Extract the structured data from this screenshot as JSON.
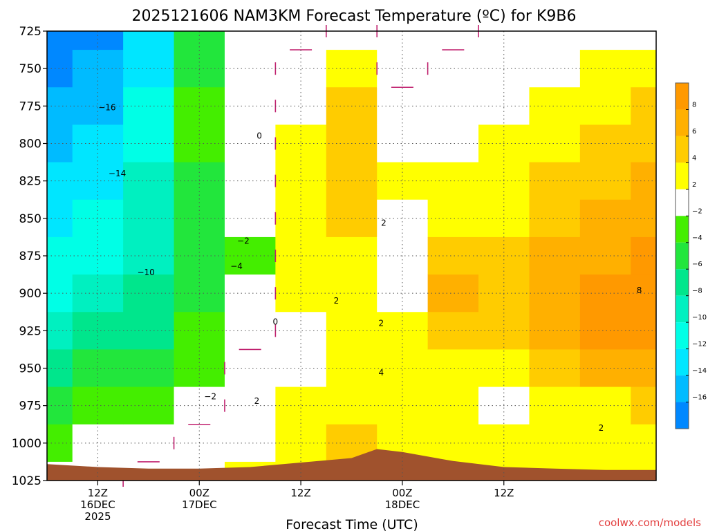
{
  "chart_data": {
    "type": "heatmap",
    "title": "2025121606 NAM3KM Forecast Temperature (ºC) for K9B6",
    "xlabel": "Forecast Time (UTC)",
    "ylabel": "",
    "credit": "coolwx.com/models",
    "y_axis": {
      "scale": "pressure (hPa), inverted",
      "range": [
        1025,
        725
      ],
      "ticks": [
        725,
        750,
        775,
        800,
        825,
        850,
        875,
        900,
        925,
        950,
        975,
        1000,
        1025
      ],
      "tick_labels": [
        "725",
        "750",
        "775",
        "800",
        "825",
        "850",
        "875",
        "900",
        "925",
        "950",
        "975",
        "1000",
        "1025"
      ]
    },
    "x_axis": {
      "range_hours": [
        6,
        78
      ],
      "ticks": [
        {
          "hour": 12,
          "lines": [
            "12Z",
            "16DEC",
            "2025"
          ]
        },
        {
          "hour": 24,
          "lines": [
            "00Z",
            "17DEC"
          ]
        },
        {
          "hour": 36,
          "lines": [
            "12Z"
          ]
        },
        {
          "hour": 48,
          "lines": [
            "00Z",
            "18DEC"
          ]
        },
        {
          "hour": 60,
          "lines": [
            "12Z"
          ]
        }
      ]
    },
    "grid": true,
    "legend": "right (colorbar)",
    "colorbar": {
      "bins": [
        {
          "from": 8,
          "to": 10,
          "color": "#ff9900"
        },
        {
          "from": 6,
          "to": 8,
          "color": "#ffb000"
        },
        {
          "from": 4,
          "to": 6,
          "color": "#ffcc00"
        },
        {
          "from": 2,
          "to": 4,
          "color": "#ffff00"
        },
        {
          "from": -2,
          "to": 2,
          "color": "#ffffff"
        },
        {
          "from": -4,
          "to": -2,
          "color": "#44ee00"
        },
        {
          "from": -6,
          "to": -4,
          "color": "#22e63c"
        },
        {
          "from": -8,
          "to": -6,
          "color": "#00e68c"
        },
        {
          "from": -10,
          "to": -8,
          "color": "#00f0c0"
        },
        {
          "from": -12,
          "to": -10,
          "color": "#00ffe6"
        },
        {
          "from": -14,
          "to": -12,
          "color": "#00e6ff"
        },
        {
          "from": -16,
          "to": -14,
          "color": "#00bbff"
        },
        {
          "from": -18,
          "to": -16,
          "color": "#0088ff"
        }
      ],
      "labels": [
        "8",
        "6",
        "4",
        "2",
        "−2",
        "−4",
        "−6",
        "−8",
        "−10",
        "−12",
        "−14",
        "−16"
      ]
    },
    "ground_color": "#a0522d",
    "freezing_line_color": "#c0206e",
    "contour_labels": [
      {
        "text": "−16",
        "hour": 13.1,
        "p": 776
      },
      {
        "text": "−14",
        "hour": 14.3,
        "p": 820
      },
      {
        "text": "−10",
        "hour": 17.7,
        "p": 886
      },
      {
        "text": "−2",
        "hour": 29.2,
        "p": 865
      },
      {
        "text": "−4",
        "hour": 28.4,
        "p": 882
      },
      {
        "text": "0",
        "hour": 31.1,
        "p": 795
      },
      {
        "text": "0",
        "hour": 33.0,
        "p": 919
      },
      {
        "text": "−2",
        "hour": 25.3,
        "p": 969
      },
      {
        "text": "2",
        "hour": 30.8,
        "p": 972
      },
      {
        "text": "2",
        "hour": 40.2,
        "p": 905
      },
      {
        "text": "2",
        "hour": 45.5,
        "p": 920
      },
      {
        "text": "4",
        "hour": 45.5,
        "p": 953
      },
      {
        "text": "2",
        "hour": 45.8,
        "p": 853
      },
      {
        "text": "8",
        "hour": 76.0,
        "p": 898
      },
      {
        "text": "2",
        "hour": 71.5,
        "p": 990
      }
    ],
    "series": [
      {
        "hour": 6,
        "values": {
          "725": -18,
          "750": -17,
          "775": -16,
          "800": -15,
          "825": -14,
          "850": -13,
          "875": -12,
          "900": -11,
          "925": -9,
          "950": -7,
          "975": -5,
          "1000": -3,
          "1025": -2
        }
      },
      {
        "hour": 12,
        "values": {
          "725": -17,
          "750": -16,
          "775": -15,
          "800": -14,
          "825": -13,
          "850": -12,
          "875": -11,
          "900": -10,
          "925": -8,
          "950": -6,
          "975": -4,
          "1000": -2,
          "1025": -1
        }
      },
      {
        "hour": 18,
        "values": {
          "725": -14,
          "750": -13,
          "775": -12,
          "800": -11,
          "825": -10,
          "850": -9,
          "875": -9,
          "900": -8,
          "925": -7,
          "950": -5,
          "975": -3,
          "1000": -1,
          "1025": 0
        }
      },
      {
        "hour": 24,
        "values": {
          "725": -6,
          "750": -5,
          "775": -4,
          "800": -4,
          "825": -5,
          "850": -5,
          "875": -5,
          "900": -5,
          "925": -4,
          "950": -3,
          "975": -2,
          "1000": 0,
          "1025": 0
        }
      },
      {
        "hour": 30,
        "values": {
          "725": -2,
          "750": -1,
          "775": -1,
          "800": -1,
          "825": -1,
          "850": -2,
          "875": -3,
          "900": -2,
          "925": -1,
          "950": 0,
          "975": 1,
          "1000": 1,
          "1025": 2
        }
      },
      {
        "hour": 36,
        "values": {
          "725": -1,
          "750": 0,
          "775": 1,
          "800": 2,
          "825": 3,
          "850": 3,
          "875": 2,
          "900": 2,
          "925": 1,
          "950": 1,
          "975": 2,
          "1000": 3,
          "1025": 3
        }
      },
      {
        "hour": 42,
        "values": {
          "725": 0,
          "750": 3,
          "775": 4,
          "800": 5,
          "825": 5,
          "850": 4,
          "875": 3,
          "900": 2,
          "925": 2,
          "950": 2,
          "975": 3,
          "1000": 4,
          "1025": 5
        }
      },
      {
        "hour": 48,
        "values": {
          "725": -2,
          "750": -1,
          "775": 0,
          "800": 1,
          "825": 2,
          "850": 1,
          "875": 1,
          "900": 1,
          "925": 2,
          "950": 3,
          "975": 3,
          "1000": 3,
          "1025": 3
        }
      },
      {
        "hour": 54,
        "values": {
          "725": -1,
          "750": 0,
          "775": 1,
          "800": 1,
          "825": 2,
          "850": 3,
          "875": 4,
          "900": 6,
          "925": 5,
          "950": 3,
          "975": 2,
          "1000": 2,
          "1025": 2
        }
      },
      {
        "hour": 60,
        "values": {
          "725": 0,
          "750": 1,
          "775": 1,
          "800": 2,
          "825": 3,
          "850": 3,
          "875": 4,
          "900": 5,
          "925": 4,
          "950": 2,
          "975": 1,
          "1000": 2,
          "1025": 2
        }
      },
      {
        "hour": 66,
        "values": {
          "725": 0,
          "750": 1,
          "775": 2,
          "800": 2,
          "825": 4,
          "850": 5,
          "875": 6,
          "900": 7,
          "925": 7,
          "950": 5,
          "975": 3,
          "1000": 2,
          "1025": 2
        }
      },
      {
        "hour": 72,
        "values": {
          "725": 1,
          "750": 2,
          "775": 3,
          "800": 4,
          "825": 5,
          "850": 6,
          "875": 7,
          "900": 8,
          "925": 8,
          "950": 6,
          "975": 3,
          "1000": 2,
          "1025": 2
        }
      },
      {
        "hour": 78,
        "values": {
          "725": 1,
          "750": 3,
          "775": 4,
          "800": 5,
          "825": 6,
          "850": 7,
          "875": 8,
          "900": 9,
          "925": 9,
          "950": 7,
          "975": 4,
          "1000": 3,
          "1025": 3
        }
      }
    ],
    "ground_surface": [
      {
        "hour": 6,
        "p": 1014
      },
      {
        "hour": 12,
        "p": 1016
      },
      {
        "hour": 18,
        "p": 1017
      },
      {
        "hour": 24,
        "p": 1017
      },
      {
        "hour": 30,
        "p": 1016
      },
      {
        "hour": 36,
        "p": 1013
      },
      {
        "hour": 42,
        "p": 1010
      },
      {
        "hour": 45,
        "p": 1004
      },
      {
        "hour": 48,
        "p": 1006
      },
      {
        "hour": 54,
        "p": 1012
      },
      {
        "hour": 60,
        "p": 1016
      },
      {
        "hour": 66,
        "p": 1017
      },
      {
        "hour": 72,
        "p": 1018
      },
      {
        "hour": 78,
        "p": 1018
      }
    ]
  }
}
